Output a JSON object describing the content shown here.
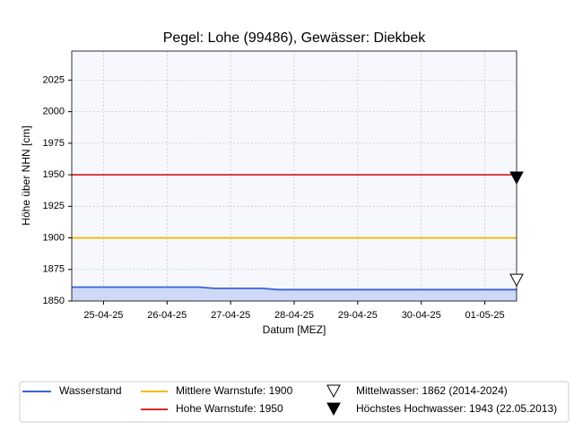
{
  "chart_data": {
    "type": "line",
    "title": "Pegel:  Lohe (99486), Gewässer:  Diekbek",
    "x_label": "Datum [MEZ]",
    "y_label": "Höhe über NHN [cm]",
    "x": [
      -0.5,
      -0.25,
      0,
      0.25,
      0.5,
      0.75,
      1,
      1.25,
      1.5,
      1.75,
      2,
      2.25,
      2.5,
      2.75,
      3,
      3.25,
      3.5,
      3.75,
      4,
      4.25,
      4.5,
      4.75,
      5,
      5.25,
      5.5,
      5.75,
      6,
      6.25,
      6.5
    ],
    "series": [
      {
        "name": "Wasserstand",
        "color": "#3b63d4",
        "fill": "#cdd9f6",
        "values": [
          1861,
          1861,
          1861,
          1861,
          1861,
          1861,
          1861,
          1861,
          1861,
          1860,
          1860,
          1860,
          1860,
          1859,
          1859,
          1859,
          1859,
          1859,
          1859,
          1859,
          1859,
          1859,
          1859,
          1859,
          1859,
          1859,
          1859,
          1859,
          1859
        ]
      }
    ],
    "reference_lines": [
      {
        "name": "Mittlere Warnstufe: 1900",
        "value": 1900,
        "color": "#f5b800"
      },
      {
        "name": "Hohe Warnstufe: 1950",
        "value": 1950,
        "color": "#d62728"
      }
    ],
    "markers": [
      {
        "name": "Mittelwasser: 1862 (2014-2024)",
        "value": 1862,
        "filled": false
      },
      {
        "name": "Höchstes Hochwasser: 1943 (22.05.2013)",
        "value": 1943,
        "filled": true
      }
    ],
    "xlim": [
      -0.5,
      6.5
    ],
    "ylim": [
      1850,
      2048
    ],
    "xticks": [
      {
        "value": 0,
        "label": "25-04-25"
      },
      {
        "value": 1,
        "label": "26-04-25"
      },
      {
        "value": 2,
        "label": "27-04-25"
      },
      {
        "value": 3,
        "label": "28-04-25"
      },
      {
        "value": 4,
        "label": "29-04-25"
      },
      {
        "value": 5,
        "label": "30-04-25"
      },
      {
        "value": 6,
        "label": "01-05-25"
      }
    ],
    "yticks": [
      1850,
      1875,
      1900,
      1925,
      1950,
      1975,
      2000,
      2025
    ],
    "grid": true
  }
}
